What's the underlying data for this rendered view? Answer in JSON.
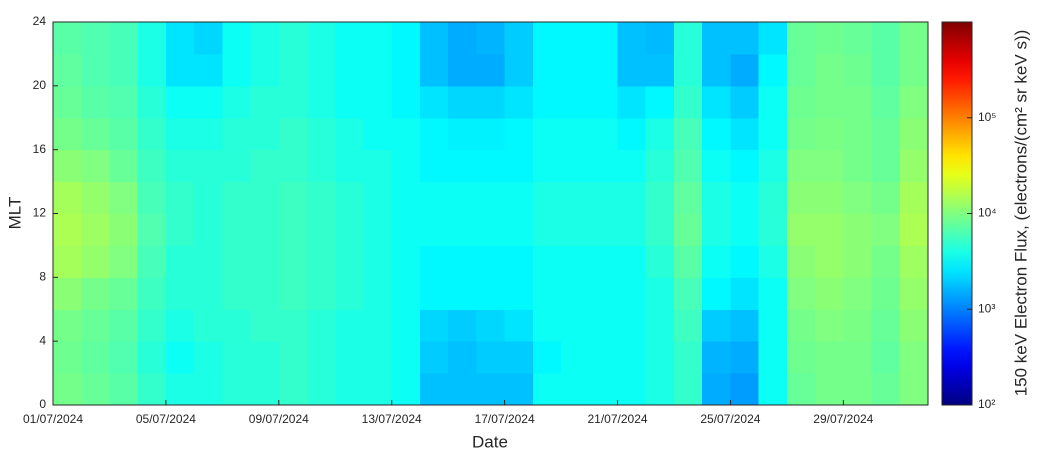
{
  "chart_data": {
    "type": "heatmap",
    "xlabel": "Date",
    "ylabel": "MLT",
    "colorbar_label": "150 keV Electron Flux, (electrons/(cm² sr keV s))",
    "colormap": "jet",
    "zscale": "log",
    "xlim": [
      0,
      31
    ],
    "xticks": [
      {
        "value": 0,
        "label": "01/07/2024"
      },
      {
        "value": 4,
        "label": "05/07/2024"
      },
      {
        "value": 8,
        "label": "09/07/2024"
      },
      {
        "value": 12,
        "label": "13/07/2024"
      },
      {
        "value": 16,
        "label": "17/07/2024"
      },
      {
        "value": 20,
        "label": "21/07/2024"
      },
      {
        "value": 24,
        "label": "25/07/2024"
      },
      {
        "value": 28,
        "label": "29/07/2024"
      }
    ],
    "ylim": [
      0,
      24
    ],
    "yticks": [
      0,
      4,
      8,
      12,
      16,
      20,
      24
    ],
    "zlim": [
      100,
      1000000
    ],
    "zticks": [
      {
        "value": 100,
        "label": "10²"
      },
      {
        "value": 1000,
        "label": "10³"
      },
      {
        "value": 10000,
        "label": "10⁴"
      },
      {
        "value": 100000,
        "label": "10⁵"
      }
    ],
    "z": [
      [
        9000,
        8000,
        7000,
        5000,
        4000,
        4000,
        4500,
        4500,
        5000,
        4500,
        4000,
        4000,
        3500,
        1800,
        1800,
        1800,
        1800,
        3500,
        3500,
        3500,
        3500,
        4000,
        5000,
        1500,
        1300,
        3500,
        8000,
        9000,
        9000,
        8000,
        10000
      ],
      [
        8500,
        7500,
        6500,
        4500,
        3500,
        4000,
        4500,
        4500,
        5000,
        4500,
        4000,
        4000,
        3500,
        2000,
        1800,
        2000,
        2000,
        3000,
        3500,
        3500,
        3500,
        4000,
        5000,
        1600,
        1500,
        3500,
        8500,
        9000,
        9000,
        7500,
        10000
      ],
      [
        9000,
        8000,
        7000,
        5000,
        4000,
        4500,
        4500,
        5000,
        5000,
        4500,
        4000,
        4000,
        3500,
        2200,
        2000,
        2200,
        2500,
        3500,
        3500,
        3500,
        3500,
        4000,
        5500,
        2000,
        1800,
        3500,
        9000,
        10000,
        9500,
        8000,
        11000
      ],
      [
        11000,
        9000,
        8000,
        5500,
        4500,
        4500,
        5000,
        5000,
        5500,
        5000,
        4500,
        4000,
        3500,
        3000,
        3000,
        3000,
        3000,
        3500,
        3500,
        3500,
        3500,
        4000,
        6000,
        3000,
        2500,
        3500,
        10000,
        11000,
        10000,
        8500,
        12000
      ],
      [
        14000,
        12000,
        10000,
        6000,
        4500,
        4500,
        5000,
        5000,
        5500,
        5000,
        4500,
        4000,
        3500,
        3000,
        3000,
        3000,
        3000,
        3500,
        3500,
        3500,
        3500,
        4500,
        7000,
        3500,
        3000,
        4000,
        11000,
        12000,
        11000,
        9000,
        13000
      ],
      [
        15000,
        13000,
        11000,
        6500,
        5000,
        4500,
        5000,
        5000,
        5500,
        5000,
        4500,
        4000,
        3500,
        3500,
        3500,
        3500,
        3500,
        4000,
        4000,
        4000,
        4000,
        5000,
        8000,
        4000,
        3500,
        4500,
        12000,
        12000,
        11000,
        10000,
        15000
      ],
      [
        14000,
        12000,
        10000,
        6000,
        5000,
        4500,
        5000,
        5000,
        5500,
        5000,
        4500,
        4000,
        3500,
        3500,
        3500,
        3500,
        3500,
        4000,
        4000,
        4000,
        4000,
        5000,
        7500,
        4000,
        3500,
        4500,
        11000,
        11000,
        10000,
        9000,
        14000
      ],
      [
        11000,
        10000,
        8000,
        5500,
        4500,
        4500,
        4500,
        5000,
        5000,
        4500,
        4000,
        4000,
        3500,
        3000,
        3000,
        3000,
        3000,
        3500,
        3500,
        3500,
        3500,
        4500,
        6500,
        3500,
        3000,
        4000,
        10000,
        10000,
        9000,
        8000,
        12000
      ],
      [
        9000,
        8000,
        7000,
        5000,
        4000,
        4000,
        4500,
        4500,
        5000,
        4500,
        4000,
        3500,
        3500,
        3000,
        2800,
        2800,
        3000,
        3500,
        3500,
        3500,
        3000,
        4000,
        6000,
        3000,
        2500,
        3500,
        9000,
        9500,
        9000,
        8000,
        11000
      ],
      [
        8000,
        7000,
        6500,
        4500,
        3500,
        3500,
        4000,
        4500,
        4500,
        4000,
        3500,
        3500,
        3000,
        2500,
        2200,
        2200,
        2500,
        3000,
        3000,
        3000,
        2500,
        3000,
        5000,
        2500,
        2000,
        3500,
        8500,
        9000,
        9000,
        7500,
        10000
      ],
      [
        7500,
        6500,
        6000,
        4000,
        2500,
        2500,
        3500,
        4000,
        4500,
        4000,
        3500,
        3500,
        3000,
        1800,
        1500,
        1500,
        2000,
        3000,
        3000,
        3000,
        1800,
        1800,
        4500,
        1800,
        1500,
        3000,
        8000,
        9000,
        8500,
        7000,
        9000
      ],
      [
        7000,
        6500,
        6000,
        4000,
        2500,
        2200,
        3500,
        4000,
        4500,
        4000,
        3500,
        3500,
        3000,
        1800,
        1500,
        1600,
        2000,
        3000,
        3000,
        3000,
        1800,
        1700,
        4500,
        1800,
        1800,
        2500,
        8000,
        8500,
        8000,
        7000,
        9000
      ]
    ]
  }
}
